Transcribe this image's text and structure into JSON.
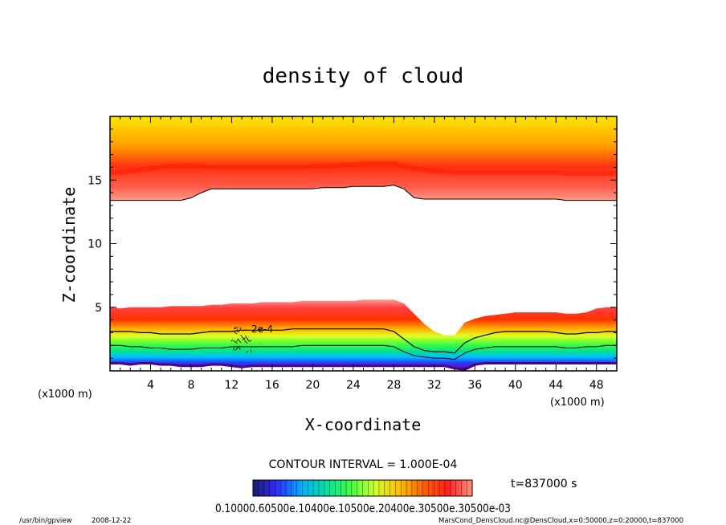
{
  "chart_data": {
    "type": "heatmap",
    "title": "density of cloud",
    "xlabel": "X-coordinate",
    "ylabel": "Z-coordinate",
    "x_unit_label": "(x1000 m)",
    "y_unit_label": "(x1000 m)",
    "xlim": [
      0,
      50
    ],
    "ylim": [
      0,
      20
    ],
    "x_ticks": [
      4,
      8,
      12,
      16,
      20,
      24,
      28,
      32,
      36,
      40,
      44,
      48
    ],
    "y_ticks": [
      5,
      10,
      15
    ],
    "contour_interval": "CONTOUR INTERVAL = 1.000E-04",
    "contour_label": "2e-4",
    "time_label": "t=837000 s",
    "colorbar_labels": "0.10000.60500e.10400e.10500e.20400e.30500e.30500e-03",
    "colorbar_stops": [
      "#1a1a6e",
      "#3030ff",
      "#00b0ff",
      "#00e0a0",
      "#40ff40",
      "#d0ff30",
      "#ffc000",
      "#ff6000",
      "#ff2020",
      "#ff9080"
    ],
    "upper_layer": {
      "base_km": [
        13.4,
        13.4,
        13.4,
        13.4,
        13.4,
        13.4,
        13.4,
        13.4,
        13.6,
        14.0,
        14.3,
        14.3,
        14.3,
        14.3,
        14.3,
        14.3,
        14.3,
        14.3,
        14.3,
        14.3,
        14.3,
        14.4,
        14.4,
        14.4,
        14.5,
        14.5,
        14.5,
        14.5,
        14.6,
        14.3,
        13.6,
        13.5,
        13.5,
        13.5,
        13.5,
        13.5,
        13.5,
        13.5,
        13.5,
        13.5,
        13.5,
        13.5,
        13.5,
        13.5,
        13.5,
        13.4,
        13.4,
        13.4,
        13.4,
        13.4,
        13.4
      ],
      "peak_km": [
        15.6,
        15.6,
        15.7,
        15.8,
        15.9,
        16.0,
        16.1,
        16.1,
        16.1,
        16.1,
        16.0,
        16.0,
        16.0,
        16.0,
        16.0,
        16.0,
        16.0,
        16.0,
        16.0,
        16.0,
        16.1,
        16.1,
        16.1,
        16.2,
        16.2,
        16.3,
        16.3,
        16.3,
        16.3,
        16.1,
        15.9,
        15.8,
        15.7,
        15.7,
        15.6,
        15.6,
        15.6,
        15.6,
        15.6,
        15.6,
        15.6,
        15.6,
        15.6,
        15.6,
        15.6,
        15.5,
        15.5,
        15.5,
        15.5,
        15.5,
        15.5
      ]
    },
    "lower_layer": {
      "top_km": [
        5.0,
        4.9,
        5.0,
        5.0,
        5.0,
        5.0,
        5.1,
        5.1,
        5.1,
        5.1,
        5.2,
        5.2,
        5.3,
        5.3,
        5.3,
        5.4,
        5.4,
        5.4,
        5.4,
        5.5,
        5.5,
        5.5,
        5.5,
        5.5,
        5.5,
        5.6,
        5.6,
        5.6,
        5.6,
        5.3,
        4.5,
        3.7,
        3.1,
        2.8,
        2.8,
        3.8,
        4.1,
        4.3,
        4.4,
        4.5,
        4.6,
        4.6,
        4.6,
        4.6,
        4.6,
        4.5,
        4.5,
        4.6,
        4.9,
        5.0,
        5.0
      ],
      "bottom_km": [
        0.6,
        0.6,
        0.5,
        0.6,
        0.6,
        0.5,
        0.5,
        0.4,
        0.4,
        0.4,
        0.5,
        0.5,
        0.4,
        0.3,
        0.4,
        0.4,
        0.4,
        0.4,
        0.4,
        0.4,
        0.4,
        0.4,
        0.4,
        0.4,
        0.4,
        0.4,
        0.4,
        0.4,
        0.4,
        0.4,
        0.4,
        0.4,
        0.4,
        0.4,
        0.2,
        0.1,
        0.5,
        0.6,
        0.6,
        0.6,
        0.6,
        0.6,
        0.6,
        0.6,
        0.6,
        0.6,
        0.6,
        0.6,
        0.6,
        0.6,
        0.6
      ],
      "contour_2e4_km": [
        3.1,
        3.1,
        3.1,
        3.0,
        3.0,
        2.9,
        2.9,
        2.9,
        2.9,
        3.0,
        3.1,
        3.1,
        3.1,
        3.2,
        3.2,
        3.2,
        3.2,
        3.2,
        3.3,
        3.3,
        3.3,
        3.3,
        3.3,
        3.3,
        3.3,
        3.3,
        3.3,
        3.3,
        3.1,
        2.5,
        1.9,
        1.6,
        1.5,
        1.5,
        1.4,
        2.2,
        2.6,
        2.8,
        3.0,
        3.1,
        3.1,
        3.1,
        3.1,
        3.1,
        3.0,
        2.9,
        2.9,
        3.0,
        3.0,
        3.1,
        3.1
      ],
      "contour_1e4_km": [
        2.0,
        2.0,
        1.9,
        1.9,
        1.8,
        1.8,
        1.7,
        1.7,
        1.7,
        1.8,
        1.8,
        1.8,
        1.9,
        1.9,
        1.9,
        1.9,
        1.9,
        1.9,
        1.9,
        2.0,
        2.0,
        2.0,
        2.0,
        2.0,
        2.0,
        2.0,
        2.0,
        2.0,
        1.9,
        1.5,
        1.2,
        1.1,
        1.0,
        1.0,
        0.9,
        1.4,
        1.7,
        1.8,
        1.9,
        1.9,
        1.9,
        1.9,
        1.9,
        1.9,
        1.9,
        1.8,
        1.8,
        1.9,
        1.9,
        2.0,
        2.0
      ]
    }
  },
  "footer": {
    "program": "/usr/bin/gpview",
    "date": "2008-12-22",
    "source": "MarsCond_DensCloud.nc@DensCloud,x=0:50000,z=0:20000,t=837000"
  }
}
